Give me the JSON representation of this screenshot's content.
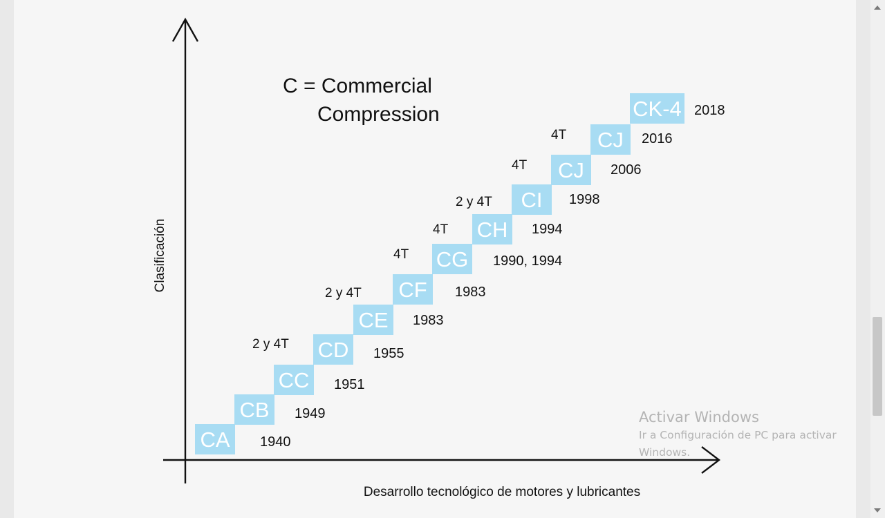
{
  "diagram": {
    "heading": [
      "C = Commercial",
      "Compression"
    ],
    "y_axis_label": "Clasificación",
    "x_axis_label": "Desarrollo tecnológico de motores y lubricantes",
    "box_color": "#a8dcf3",
    "box_text_color": "#ffffff",
    "steps": [
      {
        "code": "CA",
        "year": "1940",
        "engine": ""
      },
      {
        "code": "CB",
        "year": "1949",
        "engine": ""
      },
      {
        "code": "CC",
        "year": "1951",
        "engine": ""
      },
      {
        "code": "CD",
        "year": "1955",
        "engine": "2 y 4T"
      },
      {
        "code": "CE",
        "year": "1983",
        "engine": ""
      },
      {
        "code": "CF",
        "year": "1983",
        "engine": "2 y 4T"
      },
      {
        "code": "CG",
        "year": "1990, 1994",
        "engine": "4T"
      },
      {
        "code": "CH",
        "year": "1994",
        "engine": "4T"
      },
      {
        "code": "CI",
        "year": "1998",
        "engine": "2 y 4T"
      },
      {
        "code": "CJ",
        "year": "2006",
        "engine": "4T"
      },
      {
        "code": "CJ",
        "year": "2016",
        "engine": "4T"
      },
      {
        "code": "CK-4",
        "year": "2018",
        "engine": ""
      }
    ]
  },
  "watermark": {
    "title": "Activar Windows",
    "subtitle": "Ir a Configuración de PC para activar Windows."
  }
}
